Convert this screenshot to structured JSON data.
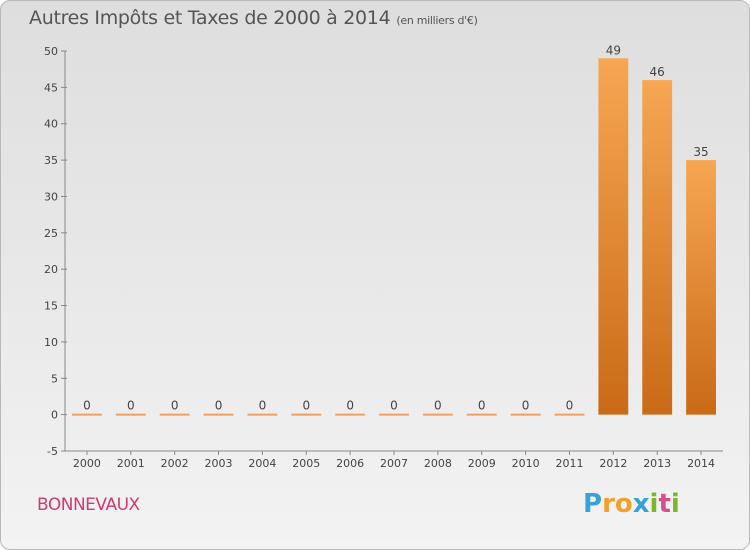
{
  "chart_data": {
    "type": "bar",
    "title": "Autres Impôts et Taxes de 2000 à 2014",
    "unit": "(en milliers d'€)",
    "categories": [
      "2000",
      "2001",
      "2002",
      "2003",
      "2004",
      "2005",
      "2006",
      "2007",
      "2008",
      "2009",
      "2010",
      "2011",
      "2012",
      "2013",
      "2014"
    ],
    "values": [
      0,
      0,
      0,
      0,
      0,
      0,
      0,
      0,
      0,
      0,
      0,
      0,
      49,
      46,
      35
    ],
    "data_labels": [
      "0",
      "0",
      "0",
      "0",
      "0",
      "0",
      "0",
      "0",
      "0",
      "0",
      "0",
      "0",
      "49",
      "46",
      "35"
    ],
    "ylim": [
      -5,
      50
    ],
    "yticks": [
      -5,
      0,
      5,
      10,
      15,
      20,
      25,
      30,
      35,
      40,
      45,
      50
    ],
    "xlabel": "",
    "ylabel": "",
    "grid": false,
    "legend": "none",
    "bar_color": "#e8852e"
  },
  "commune": "BONNEVAUX",
  "logo": {
    "letters": [
      "P",
      "r",
      "o",
      "x",
      "i",
      "t",
      "i"
    ],
    "colors": [
      "#3aa0d8",
      "#f2a02a",
      "#f2a02a",
      "#3aa0d8",
      "#7ab829",
      "#d94f8a",
      "#7ab829"
    ]
  }
}
